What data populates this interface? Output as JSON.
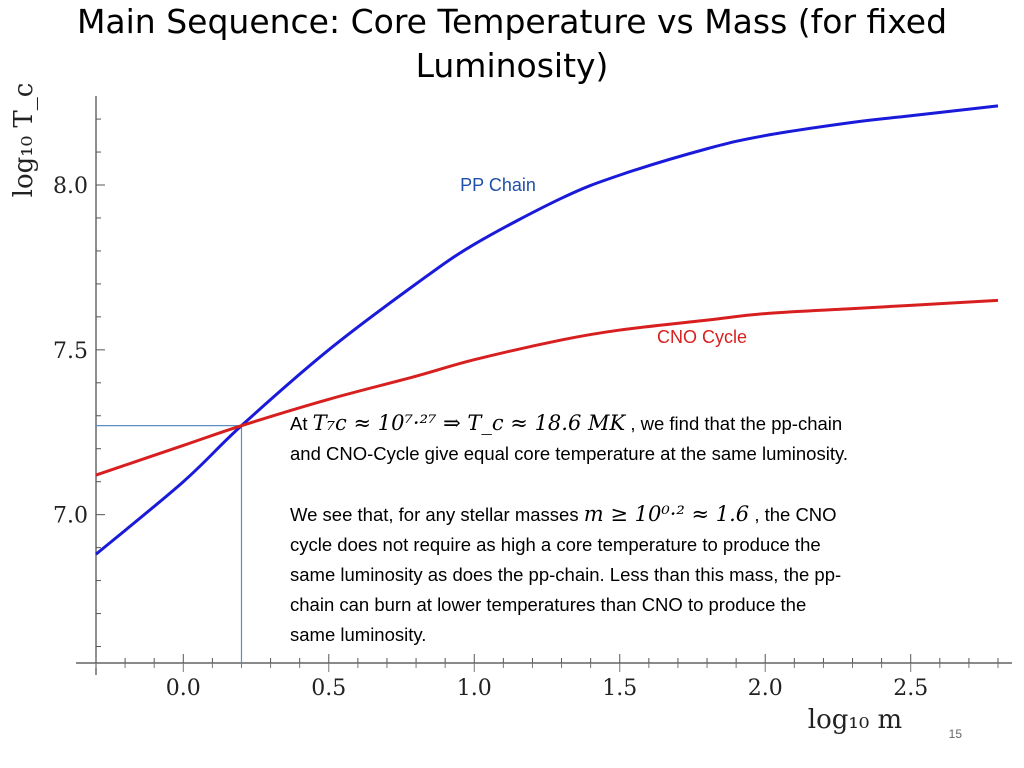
{
  "slide": {
    "title_line1": "Main Sequence: Core Temperature vs Mass (for fixed",
    "title_line2": "Luminosity)",
    "page_number": "15"
  },
  "chart_data": {
    "type": "line",
    "xlabel": "log₁₀ m",
    "ylabel": "log₁₀ T_c",
    "xlim": [
      -0.3,
      2.8
    ],
    "ylim": [
      6.55,
      8.27
    ],
    "x_ticks": [
      "0.0",
      "0.5",
      "1.0",
      "1.5",
      "2.0",
      "2.5"
    ],
    "x_tick_values": [
      0.0,
      0.5,
      1.0,
      1.5,
      2.0,
      2.5
    ],
    "y_ticks": [
      "7.0",
      "7.5",
      "8.0"
    ],
    "y_tick_values": [
      7.0,
      7.5,
      8.0
    ],
    "series": [
      {
        "name": "PP Chain",
        "color": "#1a1adb",
        "x": [
          -0.3,
          0.0,
          0.2,
          0.5,
          0.8,
          1.0,
          1.3,
          1.5,
          1.8,
          2.0,
          2.3,
          2.5,
          2.8
        ],
        "y": [
          6.88,
          7.1,
          7.27,
          7.5,
          7.7,
          7.82,
          7.96,
          8.03,
          8.11,
          8.15,
          8.19,
          8.21,
          8.24
        ]
      },
      {
        "name": "CNO Cycle",
        "color": "#d81f1f",
        "x": [
          -0.3,
          0.0,
          0.2,
          0.5,
          0.8,
          1.0,
          1.3,
          1.5,
          1.8,
          2.0,
          2.3,
          2.5,
          2.8
        ],
        "y": [
          7.12,
          7.21,
          7.27,
          7.35,
          7.42,
          7.47,
          7.53,
          7.56,
          7.59,
          7.61,
          7.625,
          7.635,
          7.65
        ]
      }
    ],
    "crossing_point": {
      "x": 0.2,
      "y": 7.27
    },
    "grid": false
  },
  "textbox": {
    "p1_at": "At",
    "p1_math": "T₇c ≈ 10⁷·²⁷ ⇒ T_c ≈ 18.6 MK",
    "p1_rest": " , we find that the pp-chain",
    "p1_line2": "and CNO-Cycle give equal core temperature at the same luminosity.",
    "p2_start": "We see that, for any stellar masses",
    "p2_math": "m ≥ 10⁰·² ≈ 1.6",
    "p2_rest": ", the CNO",
    "p2_line2": "cycle does not require as high a core temperature to produce the",
    "p2_line3": "same luminosity as does the pp-chain.  Less than this mass, the pp-",
    "p2_line4": "chain can burn at lower temperatures than CNO to produce the",
    "p2_line5": "same luminosity."
  }
}
